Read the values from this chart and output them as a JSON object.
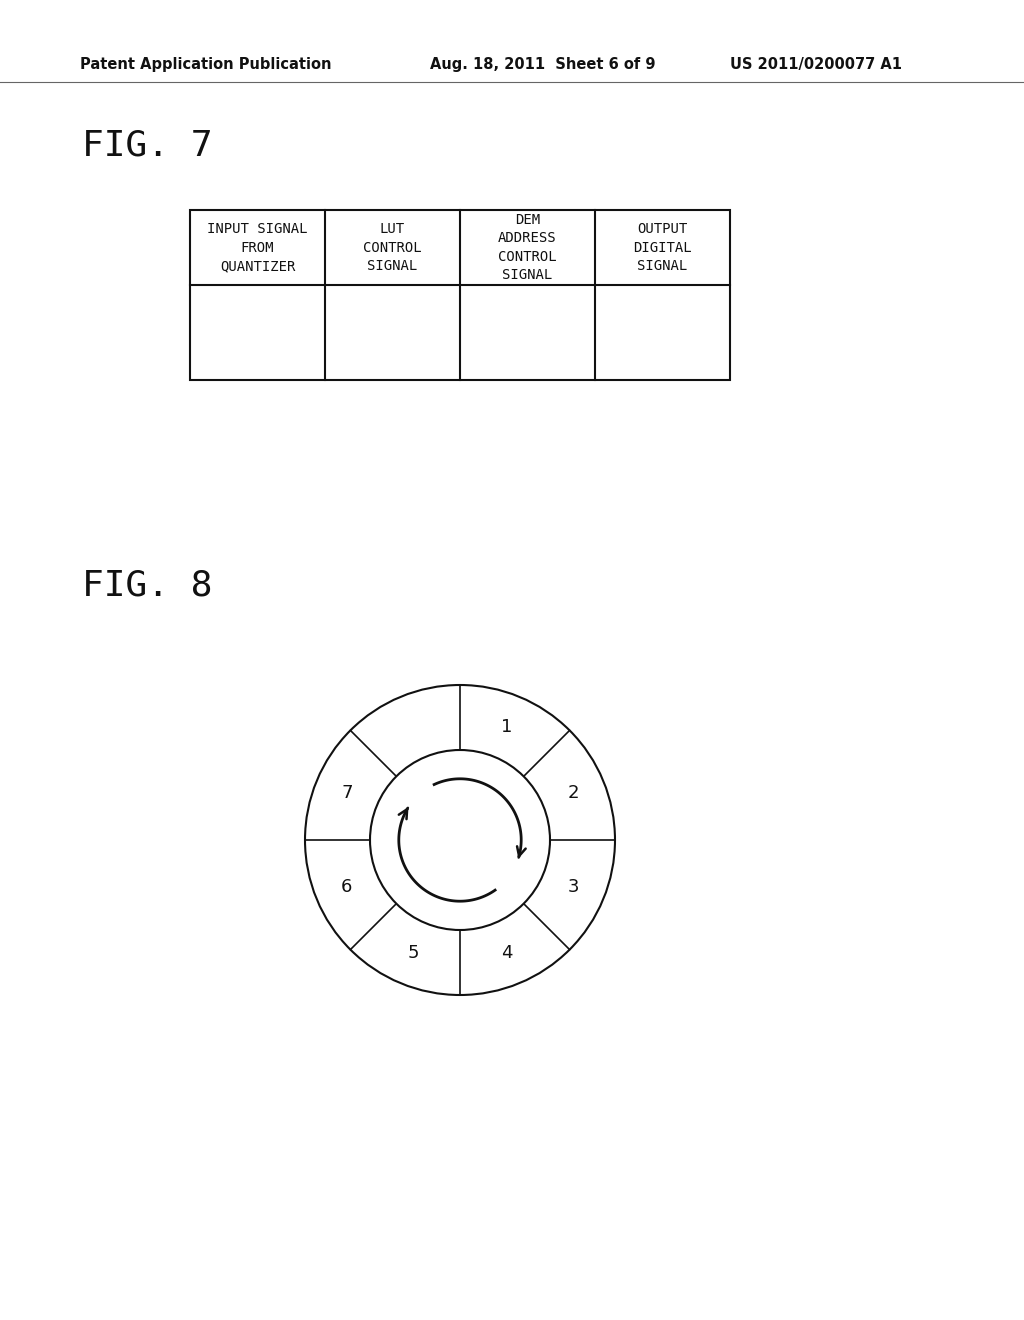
{
  "background_color": "#ffffff",
  "header_left": "Patent Application Publication",
  "header_center": "Aug. 18, 2011  Sheet 6 of 9",
  "header_right": "US 2011/0200077 A1",
  "fig7_label": "FIG. 7",
  "fig8_label": "FIG. 8",
  "table_headers": [
    "INPUT SIGNAL\nFROM\nQUANTIZER",
    "LUT\nCONTROL\nSIGNAL",
    "DEM\nADDRESS\nCONTROL\nSIGNAL",
    "OUTPUT\nDIGITAL\nSIGNAL"
  ],
  "divider_angles_deg": [
    90,
    45,
    0,
    315,
    270,
    225,
    180,
    135
  ],
  "segment_labels": [
    "1",
    "2",
    "3",
    "4",
    "5",
    "6",
    "7"
  ],
  "segment_angles": [
    67.5,
    22.5,
    337.5,
    292.5,
    247.5,
    202.5,
    157.5
  ]
}
